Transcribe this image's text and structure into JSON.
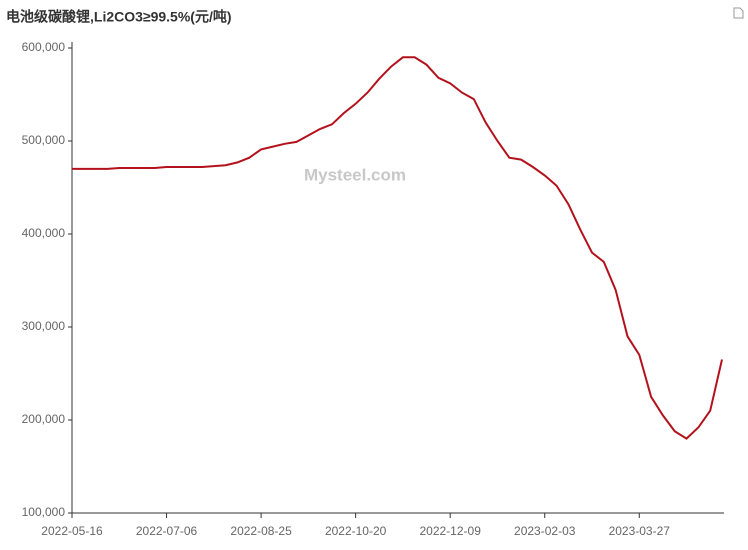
{
  "chart_data": {
    "type": "line",
    "title": "电池级碳酸锂,Li2CO3≥99.5%(元/吨)",
    "watermark": "Mysteel.com",
    "categories": [
      "2022-05-16",
      null,
      null,
      null,
      null,
      null,
      null,
      null,
      "2022-07-06",
      null,
      null,
      null,
      null,
      null,
      null,
      null,
      "2022-08-25",
      null,
      null,
      null,
      null,
      null,
      null,
      null,
      "2022-10-20",
      null,
      null,
      null,
      null,
      null,
      null,
      null,
      "2022-12-09",
      null,
      null,
      null,
      null,
      null,
      null,
      null,
      "2023-02-03",
      null,
      null,
      null,
      null,
      null,
      null,
      null,
      "2023-03-27",
      null,
      null,
      null,
      null,
      null,
      null,
      null
    ],
    "series": [
      {
        "name": "电池级碳酸锂",
        "color": "#b3121c",
        "values": [
          470000,
          470000,
          470000,
          470000,
          471000,
          471000,
          471000,
          471000,
          472000,
          472000,
          472000,
          472000,
          473000,
          474000,
          477000,
          482000,
          491000,
          494000,
          497000,
          499000,
          506000,
          513000,
          518000,
          530000,
          540000,
          552000,
          567000,
          580000,
          590000,
          590000,
          582000,
          568000,
          562000,
          552000,
          545000,
          520000,
          500000,
          482000,
          480000,
          472000,
          463000,
          452000,
          432000,
          405000,
          380000,
          370000,
          340000,
          290000,
          270000,
          225000,
          205000,
          188000,
          180000,
          192000,
          210000,
          265000
        ]
      }
    ],
    "ylim": [
      100000,
      600000
    ],
    "yticks": [
      {
        "value": 100000,
        "label": "100,000"
      },
      {
        "value": 200000,
        "label": "200,000"
      },
      {
        "value": 300000,
        "label": "300,000"
      },
      {
        "value": 400000,
        "label": "400,000"
      },
      {
        "value": 500000,
        "label": "500,000"
      },
      {
        "value": 600000,
        "label": "600,000"
      }
    ],
    "grid": false
  }
}
